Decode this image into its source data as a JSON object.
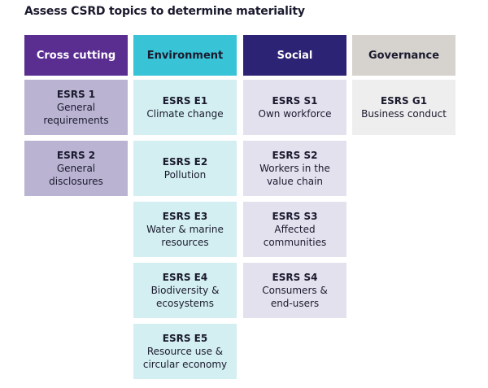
{
  "title": "Assess CSRD topics to determine materiality",
  "columns": [
    {
      "header": "Cross cutting",
      "items": [
        {
          "code": "ESRS 1",
          "label": "General requirements"
        },
        {
          "code": "ESRS 2",
          "label": "General disclosures"
        }
      ]
    },
    {
      "header": "Environment",
      "items": [
        {
          "code": "ESRS E1",
          "label": "Climate change"
        },
        {
          "code": "ESRS E2",
          "label": "Pollution"
        },
        {
          "code": "ESRS E3",
          "label": "Water & marine resources"
        },
        {
          "code": "ESRS E4",
          "label": "Biodiversity & ecosystems"
        },
        {
          "code": "ESRS E5",
          "label": "Resource use & circular economy"
        }
      ]
    },
    {
      "header": "Social",
      "items": [
        {
          "code": "ESRS S1",
          "label": "Own workforce"
        },
        {
          "code": "ESRS S2",
          "label": "Workers in the value chain"
        },
        {
          "code": "ESRS S3",
          "label": "Affected communities"
        },
        {
          "code": "ESRS S4",
          "label": "Consumers & end-users"
        }
      ]
    },
    {
      "header": "Governance",
      "items": [
        {
          "code": "ESRS G1",
          "label": "Business conduct"
        }
      ]
    }
  ]
}
